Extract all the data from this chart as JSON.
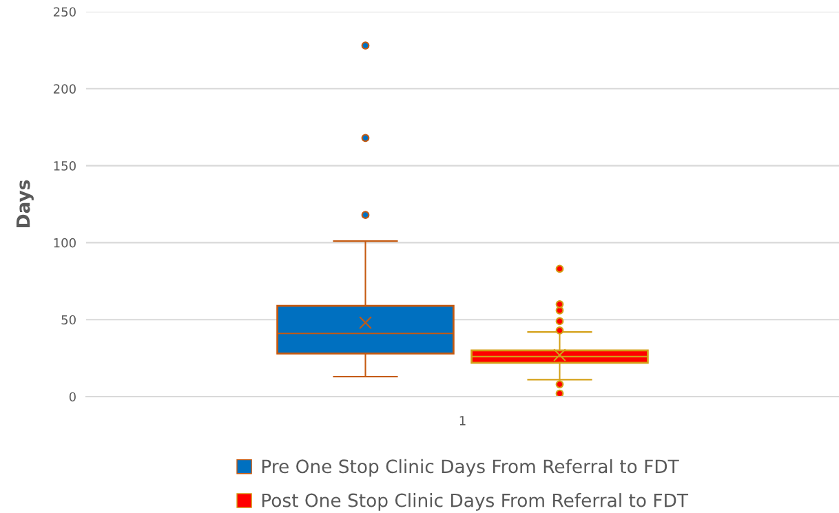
{
  "chart_data": {
    "type": "box",
    "ylabel": "Days",
    "categories": [
      "1"
    ],
    "ylim": [
      0,
      250
    ],
    "yticks": [
      0,
      50,
      100,
      150,
      200,
      250
    ],
    "grid": "y",
    "legend": "bottom",
    "series": [
      {
        "name": "Pre One Stop Clinic Days From Referral to FDT",
        "color": "#0070c0",
        "boxes": [
          {
            "low": 13,
            "q1": 28,
            "median": 41,
            "q3": 59,
            "high": 101,
            "mean": 48,
            "outliers": [
              118,
              168,
              228
            ]
          }
        ]
      },
      {
        "name": "Post One Stop Clinic Days From Referral to FDT",
        "color": "#ff0000",
        "boxes": [
          {
            "low": 11,
            "q1": 22,
            "median": 26,
            "q3": 30,
            "high": 42,
            "mean": 27,
            "outliers": [
              2,
              8,
              43,
              49,
              56,
              60,
              83
            ]
          }
        ]
      }
    ]
  }
}
